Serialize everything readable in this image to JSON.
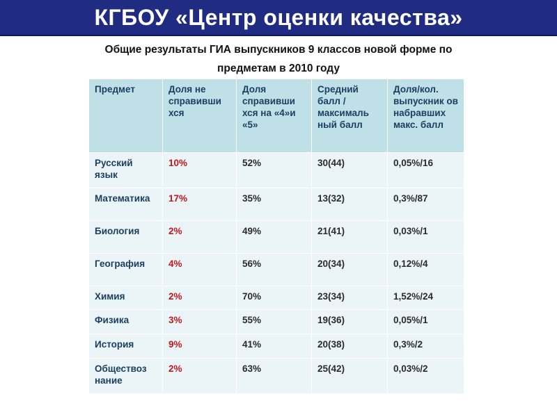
{
  "header": {
    "title": "КГБОУ «Центр оценки качества»"
  },
  "subtitle": {
    "line1": "Общие результаты ГИА выпускников 9 классов новой форме по",
    "line2": "предметам в 2010 году"
  },
  "table": {
    "columns": [
      "Предмет",
      "Доля не справивши хся",
      "Доля справивши хся на «4»и «5»",
      "Средний балл / максималь ный балл",
      "Доля/кол. выпускник ов набравших макс. балл"
    ],
    "rows": [
      {
        "subject": "Русский язык",
        "fail": "10%",
        "good": "52%",
        "avg": "30(44)",
        "max": "0,05%/16"
      },
      {
        "subject": "Математика",
        "fail": "17%",
        "good": "35%",
        "avg": "13(32)",
        "max": "0,3%/87"
      },
      {
        "subject": "Биология",
        "fail": "2%",
        "good": "49%",
        "avg": "21(41)",
        "max": "0,03%/1"
      },
      {
        "subject": "География",
        "fail": "4%",
        "good": "56%",
        "avg": "20(34)",
        "max": "0,12%/4"
      },
      {
        "subject": "Химия",
        "fail": "2%",
        "good": "70%",
        "avg": "23(34)",
        "max": "1,52%/24"
      },
      {
        "subject": "Физика",
        "fail": "3%",
        "good": "55%",
        "avg": "19(36)",
        "max": "0,05%/1"
      },
      {
        "subject": "История",
        "fail": "9%",
        "good": "41%",
        "avg": "20(38)",
        "max": "0,3%/2"
      },
      {
        "subject": "Обществоз нание",
        "fail": "2%",
        "good": "63%",
        "avg": "25(42)",
        "max": "0,03%/2"
      }
    ]
  },
  "colors": {
    "banner": "#1f2c82",
    "header_cell": "#bfe0e6",
    "body_cell": "#ebf4f6",
    "fail_text": "#c0181c",
    "subject_text": "#1a3f62"
  }
}
